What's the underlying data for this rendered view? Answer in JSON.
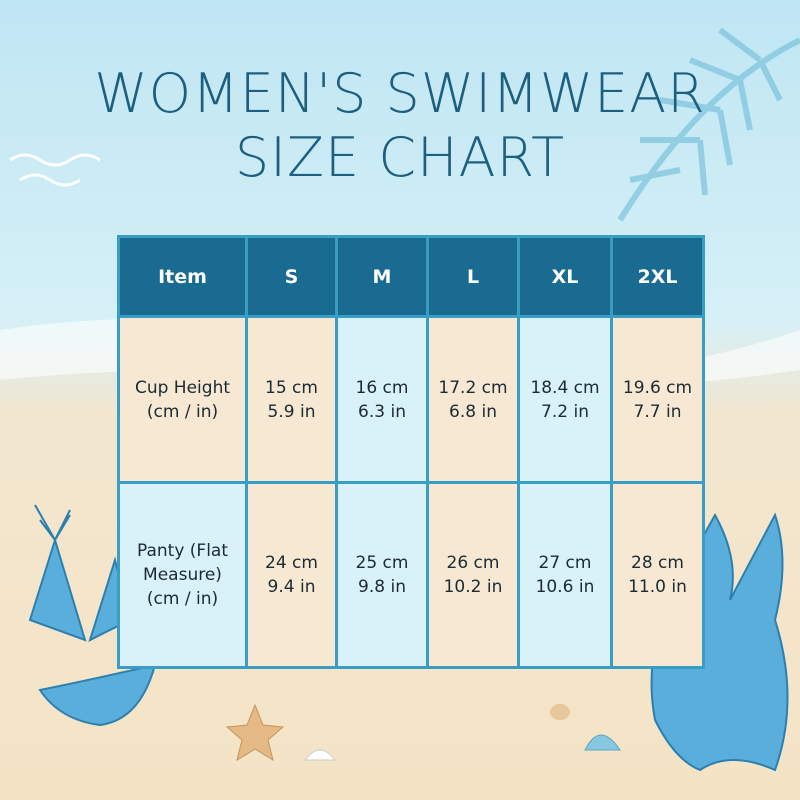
{
  "title": {
    "line1": "WOMEN'S SWIMWEAR",
    "line2": "SIZE CHART"
  },
  "table": {
    "header": [
      "Item",
      "S",
      "M",
      "L",
      "XL",
      "2XL"
    ],
    "rows": [
      {
        "label": "Cup Height (cm / in)",
        "cells": [
          [
            "15 cm",
            "5.9 in"
          ],
          [
            "16 cm",
            "6.3 in"
          ],
          [
            "17.2 cm",
            "6.8 in"
          ],
          [
            "18.4 cm",
            "7.2 in"
          ],
          [
            "19.6 cm",
            "7.7 in"
          ]
        ]
      },
      {
        "label": "Panty (Flat Measure) (cm / in)",
        "cells": [
          [
            "24 cm",
            "9.4 in"
          ],
          [
            "25 cm",
            "9.8 in"
          ],
          [
            "26 cm",
            "10.2 in"
          ],
          [
            "27 cm",
            "10.6 in"
          ],
          [
            "28 cm",
            "11.0 in"
          ]
        ]
      }
    ]
  }
}
